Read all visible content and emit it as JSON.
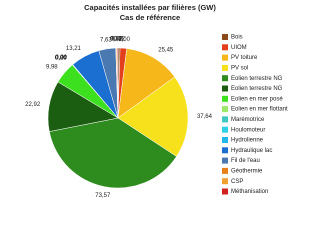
{
  "chart_data": {
    "type": "pie",
    "title": "Capacités installées par filières (GW)",
    "subtitle": "Cas de référence",
    "categories": [
      "Bois",
      "UIOM",
      "PV toiture",
      "PV sol",
      "Eolien terrestre NG",
      "Eolien terrestre NG",
      "Eolien en mer posé",
      "Eolien en mer flottant",
      "Marémotrice",
      "Houlomoteur",
      "Hydrolienne",
      "Hydraulique lac",
      "Fil de l'eau",
      "Géothermie",
      "CSP",
      "Méthanisation"
    ],
    "values": [
      0.92,
      3.0,
      25.45,
      37.64,
      73.57,
      22.92,
      9.98,
      0.0,
      0.0,
      0.24,
      0.0,
      13.21,
      7.63,
      0.14,
      0.42,
      0.43
    ],
    "value_labels": [
      "0,92",
      "3,00",
      "25,45",
      "37,64",
      "73,57",
      "22,92",
      "9,98",
      "0,00",
      "0,00",
      "0,24",
      "0,00",
      "13,21",
      "7,63",
      "0,14",
      "0,42",
      "0,43"
    ],
    "colors": [
      "#8b4a1c",
      "#e2401c",
      "#f5b71a",
      "#f7e11c",
      "#2e8b1e",
      "#1b5e12",
      "#3ce01e",
      "#9be86a",
      "#40c8c0",
      "#30d0e8",
      "#20b8e8",
      "#1a6fd0",
      "#4a78b0",
      "#e8801a",
      "#f0a030",
      "#d02020"
    ],
    "legend": "right"
  }
}
